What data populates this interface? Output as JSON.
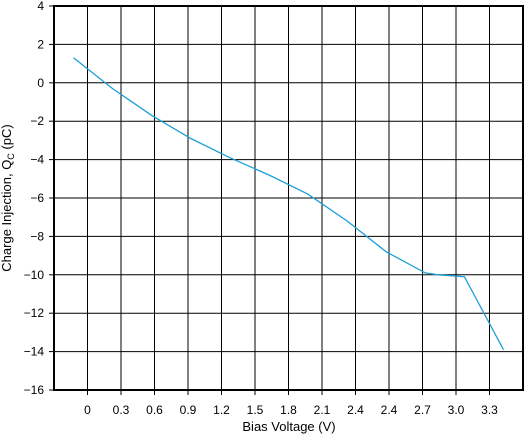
{
  "chart_data": {
    "type": "line",
    "xlabel": "Bias Voltage (V)",
    "ylabel": "Charge Injection, Q",
    "ylabel_sub": "C",
    "ylabel_unit": " (pC)",
    "x_tick_labels": [
      "0",
      "0.3",
      "0.6",
      "0.9",
      "1.2",
      "1.5",
      "1.8",
      "2.1",
      "2.4",
      "2.4",
      "2.7",
      "3.0",
      "3.3"
    ],
    "y_ticks": [
      4,
      2,
      0,
      -2,
      -4,
      -6,
      -8,
      -10,
      -12,
      -14,
      -16
    ],
    "y_tick_labels": [
      "4",
      "2",
      "0",
      "−2",
      "−4",
      "−6",
      "−8",
      "−10",
      "−12",
      "−14",
      "−16"
    ],
    "ylim": [
      -16,
      4
    ],
    "xlim": [
      -0.15,
      3.45
    ],
    "grid": true,
    "line_color": "#1aa0d8",
    "series": [
      {
        "x": [
          0,
          0.3,
          0.6,
          0.9,
          1.2,
          1.5,
          1.8,
          2.1,
          2.4,
          2.7,
          2.8,
          3.0,
          3.3
        ],
        "y": [
          1.3,
          -0.3,
          -1.7,
          -2.9,
          -3.9,
          -4.8,
          -5.8,
          -7.2,
          -8.8,
          -9.9,
          -10.0,
          -10.1,
          -13.9
        ]
      }
    ]
  }
}
